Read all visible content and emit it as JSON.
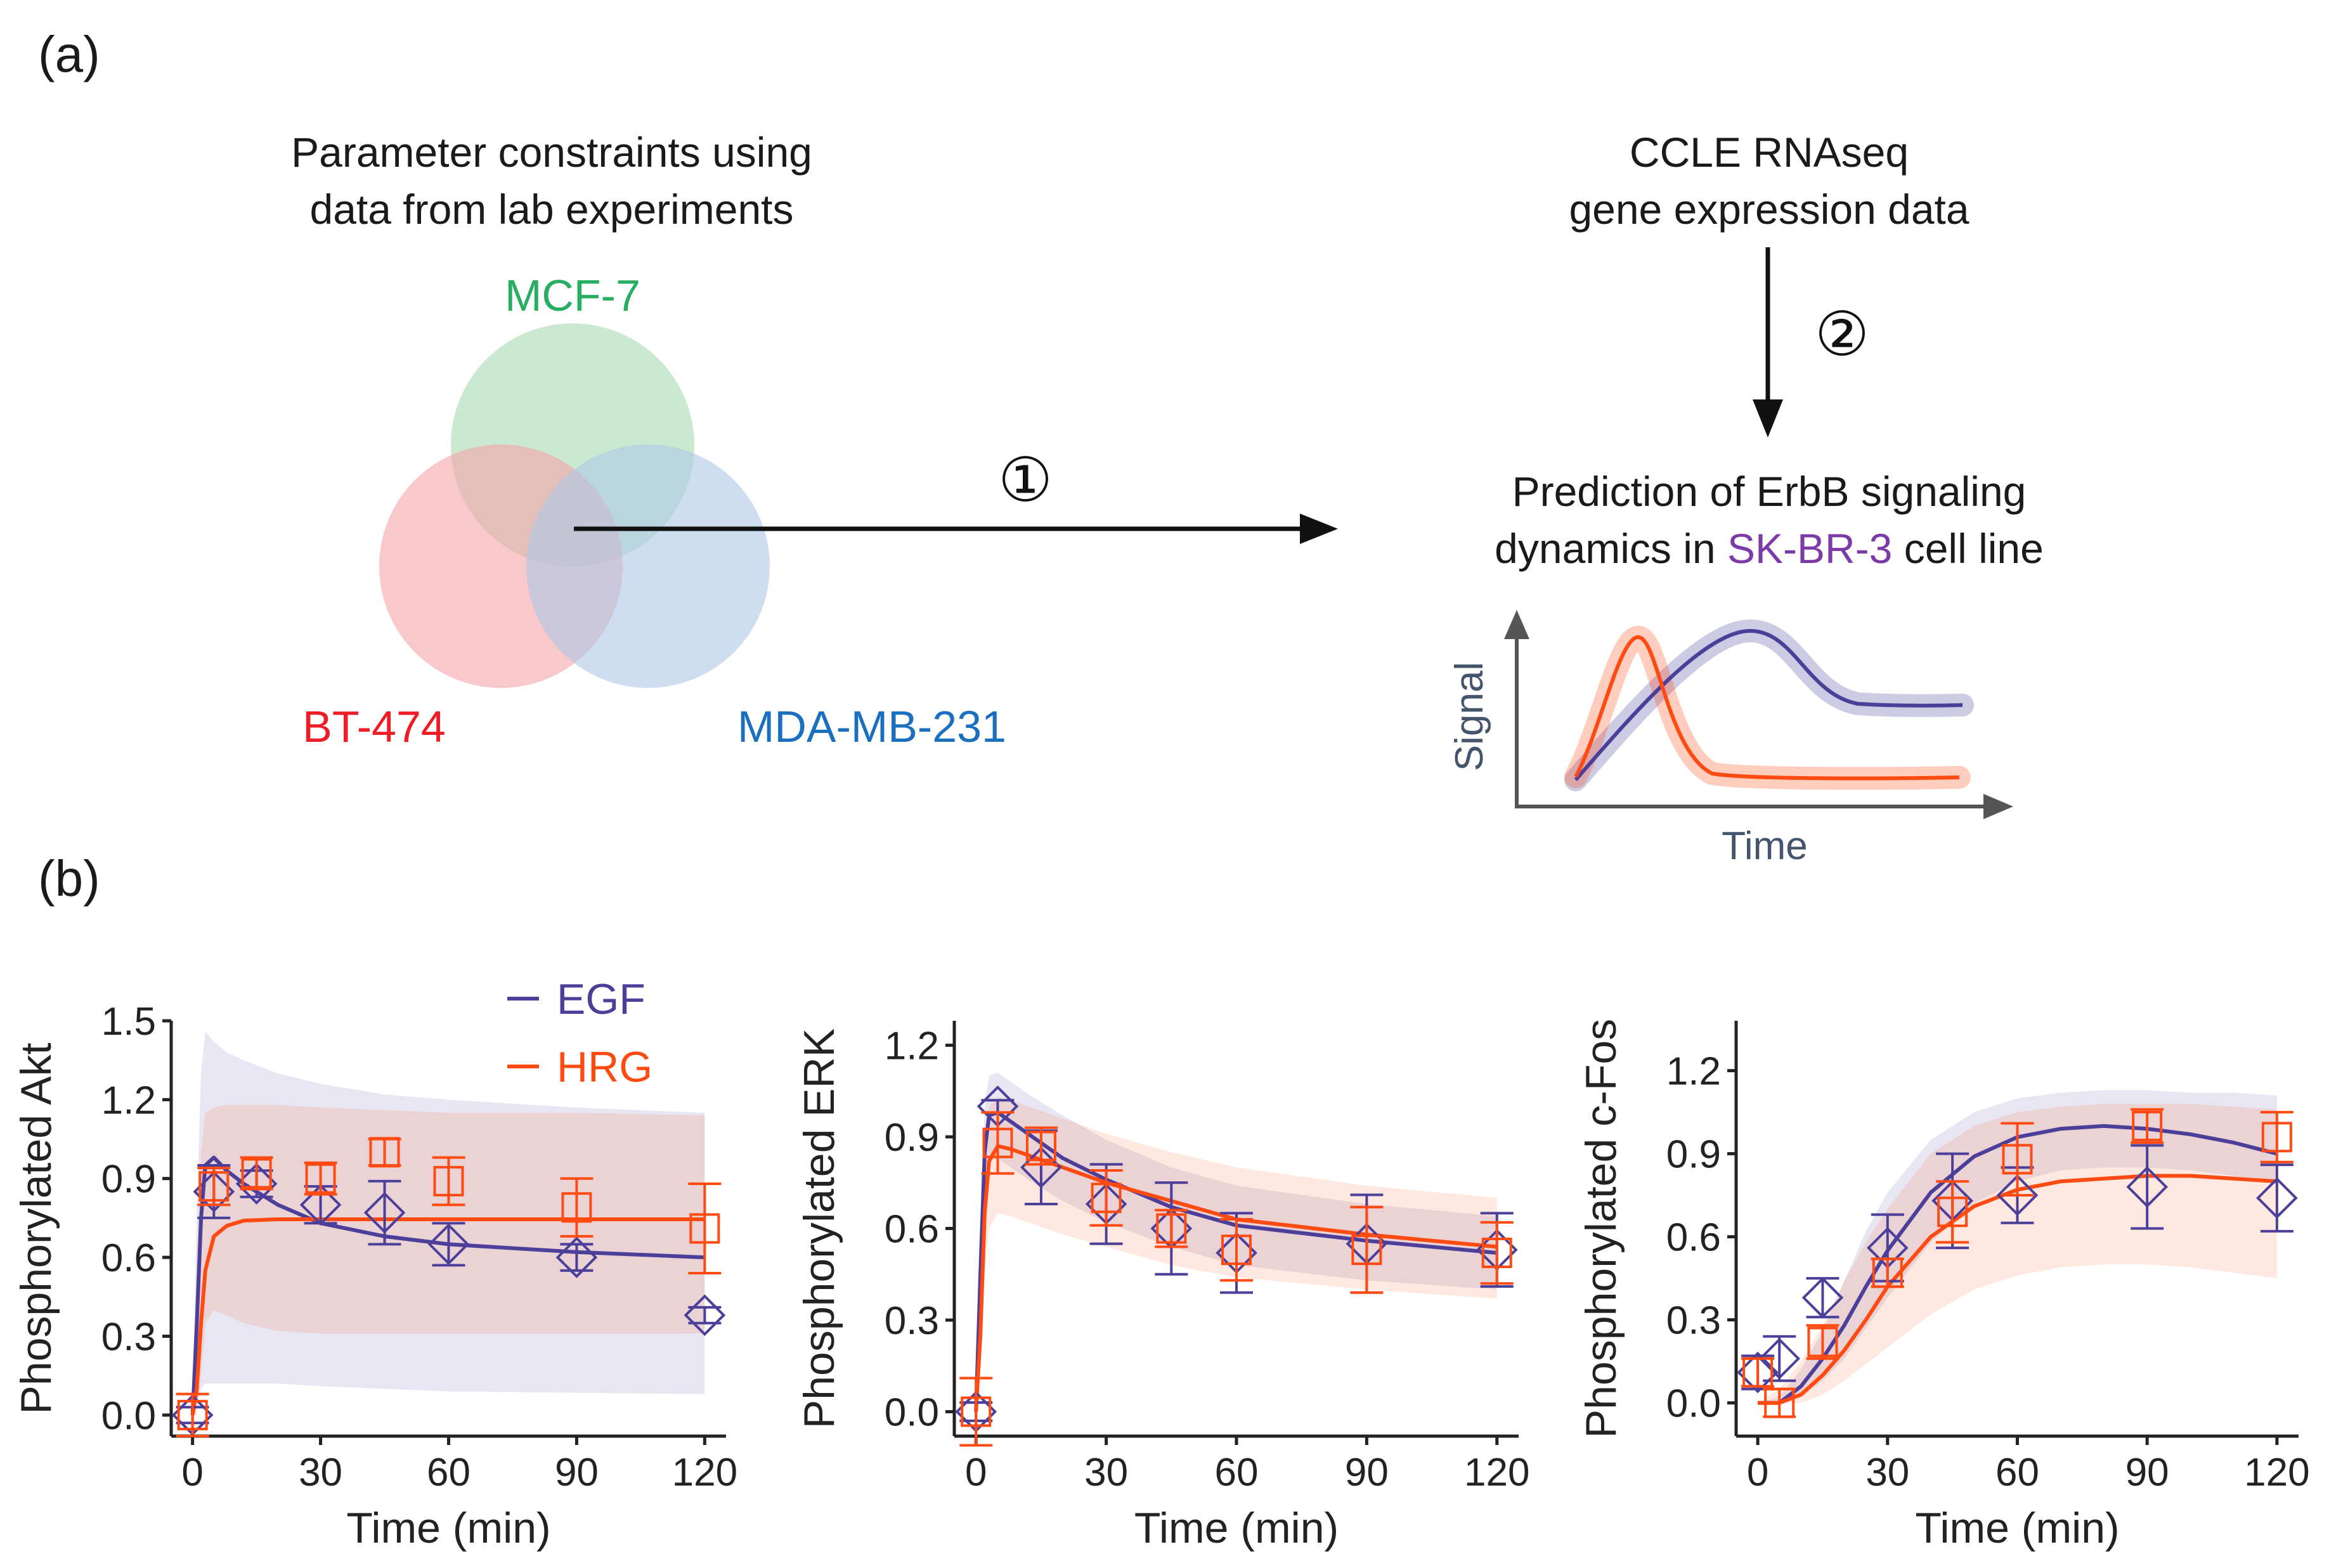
{
  "panel_a": {
    "label": "(a)",
    "constraints_title": [
      "Parameter constraints using",
      "data from lab experiments"
    ],
    "venn": [
      {
        "name": "MCF-7",
        "color": "#27ae60",
        "fill": "#a8d8b0"
      },
      {
        "name": "BT-474",
        "color": "#ee1c25",
        "fill": "#f4a3a8"
      },
      {
        "name": "MDA-MB-231",
        "color": "#1b6fbf",
        "fill": "#aec8e6"
      }
    ],
    "step1": "①",
    "step2": "②",
    "ccle_title": [
      "CCLE RNAseq",
      "gene expression data"
    ],
    "prediction": {
      "line1": "Prediction of ErbB signaling",
      "line2_pre": "dynamics in ",
      "cell_line": "SK-BR-3",
      "line2_post": " cell line",
      "cell_line_color": "#7b3aa8"
    },
    "mini_plot": {
      "ylabel": "Signal",
      "xlabel": "Time"
    }
  },
  "panel_b": {
    "label": "(b)",
    "legend": [
      {
        "name": "EGF",
        "color": "#4b3f99"
      },
      {
        "name": "HRG",
        "color": "#ff4a12"
      }
    ]
  },
  "colors": {
    "egf": "#4b3f99",
    "hrg": "#ff4a12"
  },
  "chart_data": [
    {
      "type": "line",
      "title": "",
      "xlabel": "Time (min)",
      "ylabel": "Phosphorylated Akt",
      "xlim": [
        -5,
        125
      ],
      "ylim": [
        -0.08,
        1.5
      ],
      "xticks": [
        0,
        30,
        60,
        90,
        120
      ],
      "yticks": [
        0.0,
        0.3,
        0.6,
        0.9,
        1.2,
        1.5
      ],
      "ytick_labels": [
        "0.0",
        "0.3",
        "0.6",
        "0.9",
        "1.2",
        "1.5"
      ],
      "legend": "top-right",
      "series": [
        {
          "name": "EGF",
          "marker": "diamond",
          "x": [
            0,
            5,
            15,
            30,
            45,
            60,
            90,
            120
          ],
          "y": [
            0.0,
            0.85,
            0.88,
            0.8,
            0.77,
            0.65,
            0.6,
            0.38
          ],
          "err": [
            0.03,
            0.1,
            0.05,
            0.07,
            0.12,
            0.08,
            0.05,
            0.03
          ],
          "curve_x": [
            0,
            1,
            2,
            3,
            5,
            8,
            12,
            20,
            30,
            45,
            60,
            90,
            120
          ],
          "curve_y": [
            0,
            0.35,
            0.75,
            0.95,
            0.98,
            0.93,
            0.88,
            0.8,
            0.73,
            0.68,
            0.65,
            0.62,
            0.6
          ],
          "band_lo": [
            0,
            0.05,
            0.1,
            0.12,
            0.12,
            0.12,
            0.12,
            0.12,
            0.11,
            0.1,
            0.09,
            0.085,
            0.08
          ],
          "band_hi": [
            0,
            0.8,
            1.3,
            1.46,
            1.42,
            1.38,
            1.35,
            1.3,
            1.26,
            1.22,
            1.2,
            1.17,
            1.15
          ]
        },
        {
          "name": "HRG",
          "marker": "square",
          "x": [
            0,
            5,
            15,
            30,
            45,
            60,
            90,
            120
          ],
          "y": [
            0.0,
            0.87,
            0.92,
            0.9,
            1.0,
            0.89,
            0.79,
            0.71
          ],
          "err": [
            0.08,
            0.07,
            0.06,
            0.06,
            0.05,
            0.09,
            0.11,
            0.17
          ],
          "curve_x": [
            0,
            1,
            2,
            3,
            5,
            8,
            12,
            20,
            30,
            45,
            60,
            90,
            120
          ],
          "curve_y": [
            0,
            0.1,
            0.35,
            0.55,
            0.68,
            0.72,
            0.74,
            0.745,
            0.745,
            0.745,
            0.745,
            0.745,
            0.745
          ],
          "band_lo": [
            0,
            0.0,
            0.15,
            0.35,
            0.4,
            0.38,
            0.35,
            0.32,
            0.31,
            0.31,
            0.31,
            0.31,
            0.31
          ],
          "band_hi": [
            0,
            0.6,
            1.0,
            1.15,
            1.17,
            1.18,
            1.18,
            1.18,
            1.17,
            1.16,
            1.15,
            1.15,
            1.14
          ]
        }
      ]
    },
    {
      "type": "line",
      "title": "",
      "xlabel": "Time (min)",
      "ylabel": "Phosphorylated ERK",
      "xlim": [
        -5,
        125
      ],
      "ylim": [
        -0.08,
        1.28
      ],
      "xticks": [
        0,
        30,
        60,
        90,
        120
      ],
      "yticks": [
        0.0,
        0.3,
        0.6,
        0.9,
        1.2
      ],
      "ytick_labels": [
        "0.0",
        "0.3",
        "0.6",
        "0.9",
        "1.2"
      ],
      "series": [
        {
          "name": "EGF",
          "marker": "diamond",
          "x": [
            0,
            5,
            15,
            30,
            45,
            60,
            90,
            120
          ],
          "y": [
            0.0,
            1.0,
            0.8,
            0.68,
            0.6,
            0.52,
            0.55,
            0.53
          ],
          "err": [
            0.03,
            0.02,
            0.12,
            0.13,
            0.15,
            0.13,
            0.16,
            0.12
          ],
          "curve_x": [
            0,
            1,
            2,
            3,
            5,
            8,
            12,
            20,
            30,
            45,
            60,
            90,
            120
          ],
          "curve_y": [
            0,
            0.45,
            0.85,
            0.97,
            0.98,
            0.95,
            0.91,
            0.83,
            0.76,
            0.67,
            0.61,
            0.56,
            0.52
          ],
          "band_lo": [
            0,
            0.35,
            0.7,
            0.82,
            0.83,
            0.8,
            0.76,
            0.69,
            0.62,
            0.54,
            0.48,
            0.43,
            0.4
          ],
          "band_hi": [
            0,
            0.55,
            1.0,
            1.1,
            1.11,
            1.08,
            1.04,
            0.97,
            0.89,
            0.8,
            0.74,
            0.68,
            0.64
          ]
        },
        {
          "name": "HRG",
          "marker": "square",
          "x": [
            0,
            5,
            15,
            30,
            45,
            60,
            90,
            120
          ],
          "y": [
            0.0,
            0.88,
            0.87,
            0.7,
            0.6,
            0.53,
            0.53,
            0.52
          ],
          "err": [
            0.11,
            0.1,
            0.06,
            0.09,
            0.06,
            0.1,
            0.14,
            0.1
          ],
          "curve_x": [
            0,
            1,
            2,
            3,
            5,
            8,
            12,
            20,
            30,
            45,
            60,
            90,
            120
          ],
          "curve_y": [
            0,
            0.25,
            0.65,
            0.82,
            0.87,
            0.86,
            0.84,
            0.8,
            0.75,
            0.69,
            0.63,
            0.58,
            0.54
          ],
          "band_lo": [
            0,
            0.15,
            0.45,
            0.6,
            0.65,
            0.64,
            0.62,
            0.58,
            0.54,
            0.48,
            0.44,
            0.4,
            0.37
          ],
          "band_hi": [
            0,
            0.38,
            0.85,
            1.0,
            1.03,
            1.02,
            1.0,
            0.96,
            0.91,
            0.85,
            0.8,
            0.74,
            0.7
          ]
        }
      ]
    },
    {
      "type": "line",
      "title": "",
      "xlabel": "Time (min)",
      "ylabel": "Phosphorylated c-Fos",
      "xlim": [
        -5,
        125
      ],
      "ylim": [
        -0.12,
        1.38
      ],
      "xticks": [
        0,
        30,
        60,
        90,
        120
      ],
      "yticks": [
        0.0,
        0.3,
        0.6,
        0.9,
        1.2
      ],
      "ytick_labels": [
        "0.0",
        "0.3",
        "0.6",
        "0.9",
        "1.2"
      ],
      "series": [
        {
          "name": "EGF",
          "marker": "diamond",
          "x": [
            0,
            5,
            15,
            30,
            45,
            60,
            90,
            120
          ],
          "y": [
            0.11,
            0.16,
            0.38,
            0.56,
            0.73,
            0.75,
            0.78,
            0.74
          ],
          "err": [
            0.06,
            0.08,
            0.07,
            0.12,
            0.17,
            0.1,
            0.15,
            0.12
          ],
          "curve_x": [
            0,
            5,
            10,
            15,
            20,
            25,
            30,
            40,
            50,
            60,
            70,
            80,
            90,
            100,
            110,
            120
          ],
          "curve_y": [
            0,
            0.0,
            0.06,
            0.16,
            0.28,
            0.42,
            0.55,
            0.76,
            0.89,
            0.96,
            0.99,
            1.0,
            0.99,
            0.97,
            0.94,
            0.9
          ],
          "band_lo": [
            0,
            0.0,
            0.02,
            0.08,
            0.16,
            0.27,
            0.38,
            0.58,
            0.72,
            0.8,
            0.84,
            0.85,
            0.85,
            0.84,
            0.82,
            0.79
          ],
          "band_hi": [
            0,
            0.02,
            0.12,
            0.26,
            0.44,
            0.62,
            0.76,
            0.95,
            1.05,
            1.1,
            1.12,
            1.13,
            1.13,
            1.12,
            1.12,
            1.11
          ]
        },
        {
          "name": "HRG",
          "marker": "square",
          "x": [
            0,
            5,
            15,
            30,
            45,
            60,
            90,
            120
          ],
          "y": [
            0.11,
            0.0,
            0.22,
            0.47,
            0.69,
            0.88,
            1.0,
            0.96
          ],
          "err": [
            0.05,
            0.05,
            0.06,
            0.05,
            0.11,
            0.13,
            0.06,
            0.09
          ],
          "curve_x": [
            0,
            5,
            10,
            15,
            20,
            25,
            30,
            40,
            50,
            60,
            70,
            80,
            90,
            100,
            110,
            120
          ],
          "curve_y": [
            0,
            0.0,
            0.03,
            0.1,
            0.19,
            0.3,
            0.42,
            0.6,
            0.71,
            0.77,
            0.8,
            0.81,
            0.82,
            0.82,
            0.81,
            0.8
          ],
          "band_lo": [
            0,
            0.0,
            0.0,
            0.03,
            0.08,
            0.14,
            0.2,
            0.32,
            0.41,
            0.46,
            0.49,
            0.5,
            0.5,
            0.49,
            0.47,
            0.45
          ],
          "band_hi": [
            0,
            0.05,
            0.15,
            0.28,
            0.44,
            0.58,
            0.7,
            0.9,
            1.0,
            1.05,
            1.07,
            1.08,
            1.08,
            1.08,
            1.07,
            1.06
          ]
        }
      ]
    }
  ]
}
